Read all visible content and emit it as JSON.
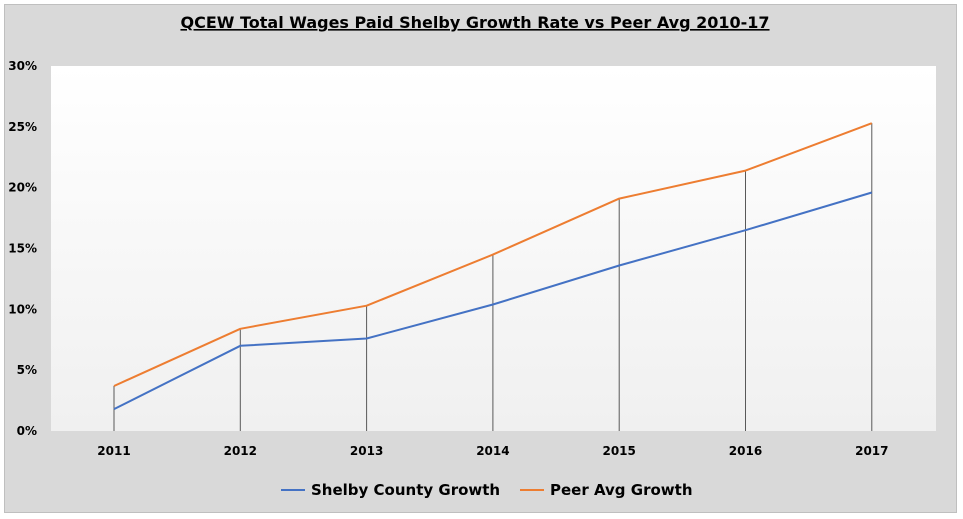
{
  "chart_data": {
    "type": "line",
    "title": "QCEW Total Wages Paid Shelby Growth Rate vs Peer Avg 2010-17",
    "xlabel": "",
    "ylabel": "",
    "categories": [
      "2011",
      "2012",
      "2013",
      "2014",
      "2015",
      "2016",
      "2017"
    ],
    "ylim": [
      0,
      30
    ],
    "yticks": [
      "0%",
      "5%",
      "10%",
      "15%",
      "20%",
      "25%",
      "30%"
    ],
    "grid": false,
    "drop_lines": true,
    "legend_position": "bottom",
    "series": [
      {
        "name": "Shelby County Growth",
        "color": "#4472c4",
        "values": [
          1.8,
          7.0,
          7.6,
          10.4,
          13.6,
          16.5,
          19.6
        ]
      },
      {
        "name": "Peer Avg Growth",
        "color": "#ed7d31",
        "values": [
          3.7,
          8.4,
          10.3,
          14.5,
          19.1,
          21.4,
          25.3
        ]
      }
    ]
  }
}
